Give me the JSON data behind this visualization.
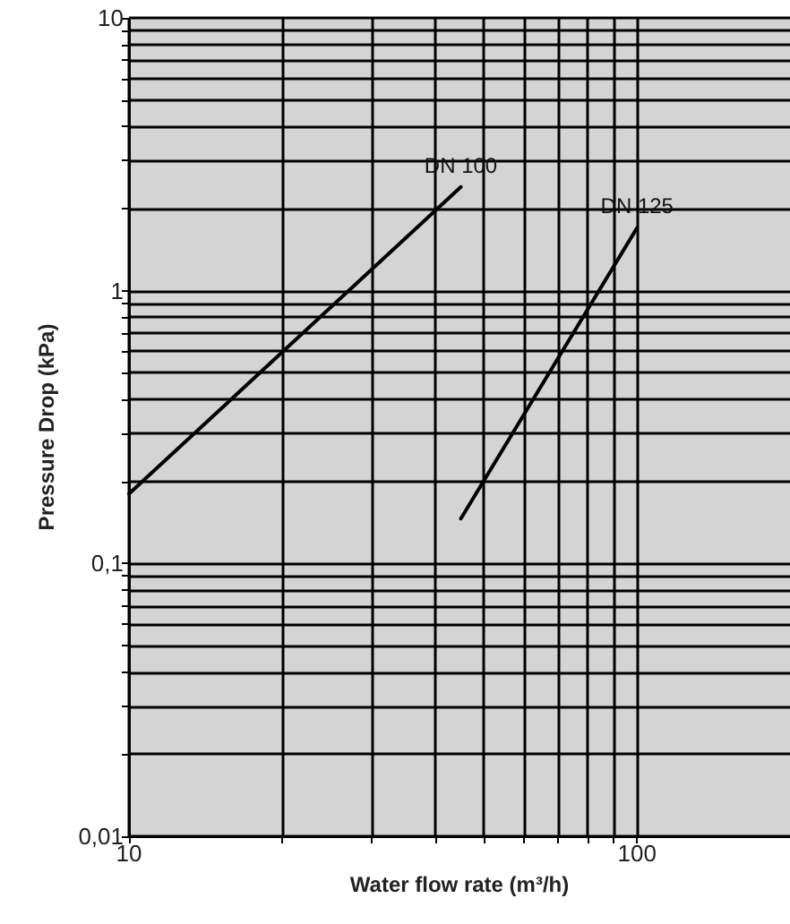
{
  "chart_data": {
    "type": "line",
    "xlabel": "Water flow rate (m³/h)",
    "ylabel": "Pressure Drop (kPa)",
    "log": "xy",
    "grid": true,
    "legend": false,
    "marker": "none",
    "line_style": "solid",
    "xlim": [
      10,
      200
    ],
    "ylim": [
      0.01,
      10
    ],
    "xticks": [
      10,
      {
        "value": 20,
        "label": null
      },
      {
        "value": 30,
        "label": null
      },
      {
        "value": 40,
        "label": null
      },
      {
        "value": 50,
        "label": null
      },
      {
        "value": 60,
        "label": null
      },
      {
        "value": 70,
        "label": null
      },
      {
        "value": 80,
        "label": null
      },
      {
        "value": 90,
        "label": null
      },
      100
    ],
    "yticks": [
      {
        "value": 0.01,
        "label": "0,01"
      },
      {
        "value": 0.02,
        "label": null
      },
      {
        "value": 0.03,
        "label": null
      },
      {
        "value": 0.04,
        "label": null
      },
      {
        "value": 0.05,
        "label": null
      },
      {
        "value": 0.06,
        "label": null
      },
      {
        "value": 0.07,
        "label": null
      },
      {
        "value": 0.08,
        "label": null
      },
      {
        "value": 0.09,
        "label": null
      },
      {
        "value": 0.1,
        "label": "0,1"
      },
      {
        "value": 0.2,
        "label": null
      },
      {
        "value": 0.3,
        "label": null
      },
      {
        "value": 0.4,
        "label": null
      },
      {
        "value": 0.5,
        "label": null
      },
      {
        "value": 0.6,
        "label": null
      },
      {
        "value": 0.7,
        "label": null
      },
      {
        "value": 0.8,
        "label": null
      },
      {
        "value": 0.9,
        "label": null
      },
      1,
      {
        "value": 2,
        "label": null
      },
      {
        "value": 3,
        "label": null
      },
      {
        "value": 4,
        "label": null
      },
      {
        "value": 5,
        "label": null
      },
      {
        "value": 6,
        "label": null
      },
      {
        "value": 7,
        "label": null
      },
      {
        "value": 8,
        "label": null
      },
      {
        "value": 9,
        "label": null
      },
      10
    ],
    "series": [
      {
        "name": "DN 100",
        "color": "#000000",
        "x": [
          10,
          45
        ],
        "values": [
          0.18,
          2.4
        ]
      },
      {
        "name": "DN 125",
        "color": "#000000",
        "x": [
          45,
          100
        ],
        "values": [
          0.146,
          1.7
        ]
      }
    ]
  }
}
